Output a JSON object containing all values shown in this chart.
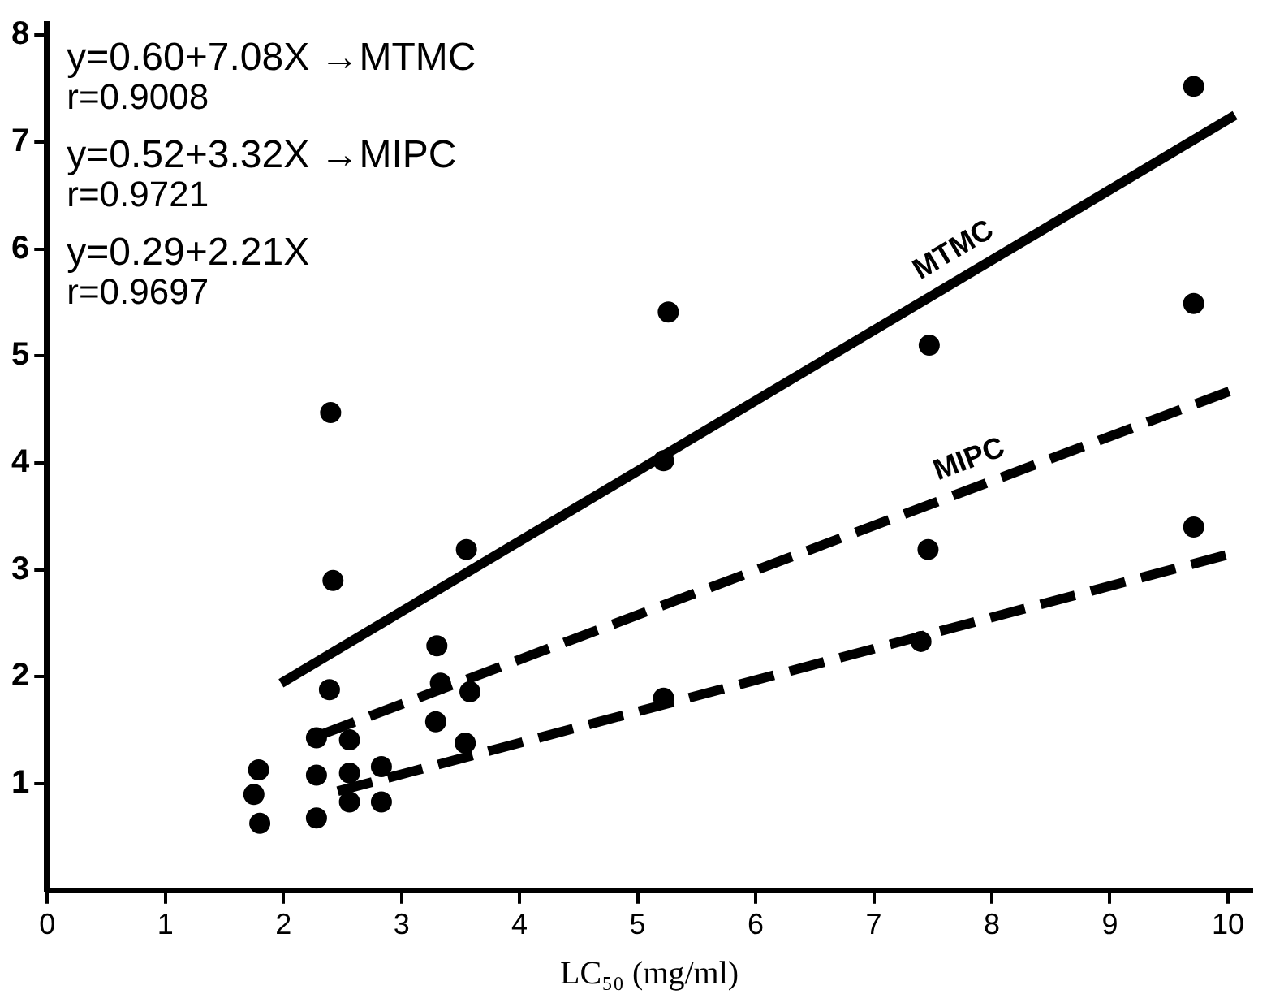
{
  "chart_data": {
    "type": "scatter",
    "xlabel": "LC₅₀ (mg/ml)",
    "xlim": [
      0,
      10.2
    ],
    "xticks": [
      0,
      1,
      2,
      3,
      4,
      5,
      6,
      7,
      8,
      9,
      10
    ],
    "ylim": [
      0,
      8.1
    ],
    "yticks": [
      1,
      2,
      3,
      4,
      5,
      6,
      7,
      8
    ],
    "grid": false,
    "legend": false,
    "annotations": [
      "y=0.60+7.08X →MTMC",
      "r=0.9008",
      "y=0.52+3.32X →MIPC",
      "r=0.9721",
      "y=0.29+2.21X",
      "r=0.9697"
    ],
    "series": [
      {
        "marker": "circle",
        "color": "#000000",
        "x": [
          9.71,
          5.26,
          7.47,
          2.4,
          3.55,
          3.33,
          1.75,
          2.28,
          2.56,
          2.83
        ],
        "values": [
          7.52,
          5.41,
          5.1,
          4.47,
          3.19,
          1.94,
          0.9,
          1.08,
          1.1,
          0.83
        ]
      },
      {
        "marker": "circle",
        "color": "#000000",
        "x": [
          9.71,
          7.46,
          5.22,
          2.42,
          3.3,
          3.58,
          1.79,
          2.28,
          2.56,
          2.83
        ],
        "values": [
          5.49,
          3.19,
          4.02,
          2.9,
          2.29,
          1.86,
          1.13,
          1.43,
          1.41,
          1.16
        ]
      },
      {
        "marker": "circle",
        "color": "#000000",
        "x": [
          9.71,
          7.4,
          5.22,
          2.39,
          3.29,
          3.54,
          1.8,
          2.28,
          2.56
        ],
        "values": [
          3.4,
          2.33,
          1.8,
          1.88,
          1.58,
          1.38,
          0.63,
          0.68,
          0.83
        ]
      },
      {
        "type": "line",
        "name": "MTMC",
        "color": "#000000",
        "marker": "none",
        "line_style": "solid",
        "x": [
          1.98,
          10.06
        ],
        "values": [
          1.94,
          7.25
        ]
      },
      {
        "type": "line",
        "name": "MIPC",
        "color": "#000000",
        "marker": "none",
        "line_style": "dashed",
        "x": [
          2.32,
          10.06
        ],
        "values": [
          1.46,
          4.69
        ]
      },
      {
        "type": "line",
        "color": "#000000",
        "marker": "none",
        "line_style": "dashed",
        "x": [
          2.46,
          10.06
        ],
        "values": [
          0.93,
          3.16
        ]
      }
    ]
  }
}
